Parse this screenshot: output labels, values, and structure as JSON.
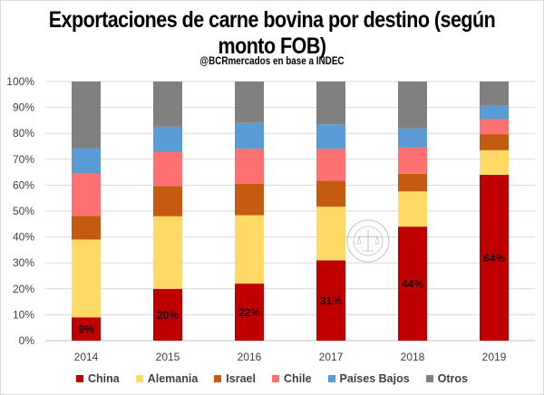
{
  "chart_data": {
    "type": "bar",
    "stacked": true,
    "normalized": true,
    "title": "Exportaciones de carne bovina por destino (según monto FOB)",
    "title_lines": [
      "Exportaciones de carne bovina por destino (según",
      "monto FOB)"
    ],
    "subtitle": "@BCRmercados en base a INDEC",
    "xlabel": "",
    "ylabel": "",
    "categories": [
      "2014",
      "2015",
      "2016",
      "2017",
      "2018",
      "2019"
    ],
    "ylim": [
      0,
      100
    ],
    "yticks": [
      "0%",
      "10%",
      "20%",
      "30%",
      "40%",
      "50%",
      "60%",
      "70%",
      "80%",
      "90%",
      "100%"
    ],
    "grid": true,
    "legend_position": "bottom",
    "series": [
      {
        "name": "China",
        "color": "#C00000",
        "values": [
          9,
          20,
          22,
          31,
          44,
          64
        ],
        "data_labels": [
          "9%",
          "20%",
          "22%",
          "31%",
          "44%",
          "64%"
        ]
      },
      {
        "name": "Alemania",
        "color": "#FFD966",
        "values": [
          30,
          28,
          26.4,
          20.7,
          13.6,
          9.5
        ]
      },
      {
        "name": "Israel",
        "color": "#C55A11",
        "values": [
          9.1,
          11.6,
          12.1,
          10.1,
          6.8,
          6.2
        ]
      },
      {
        "name": "Chile",
        "color": "#FF7171",
        "values": [
          16.4,
          13.3,
          13.5,
          12.2,
          10.1,
          5.8
        ]
      },
      {
        "name": "Países Bajos",
        "color": "#5B9BD5",
        "values": [
          9.8,
          9.7,
          10.0,
          9.5,
          7.4,
          5.1
        ]
      },
      {
        "name": "Otros",
        "color": "#808080",
        "values": [
          25.7,
          17.4,
          16.0,
          16.5,
          18.1,
          9.4
        ]
      }
    ],
    "watermark": "BOLSA DE COMERCIO DE ROSARIO"
  }
}
